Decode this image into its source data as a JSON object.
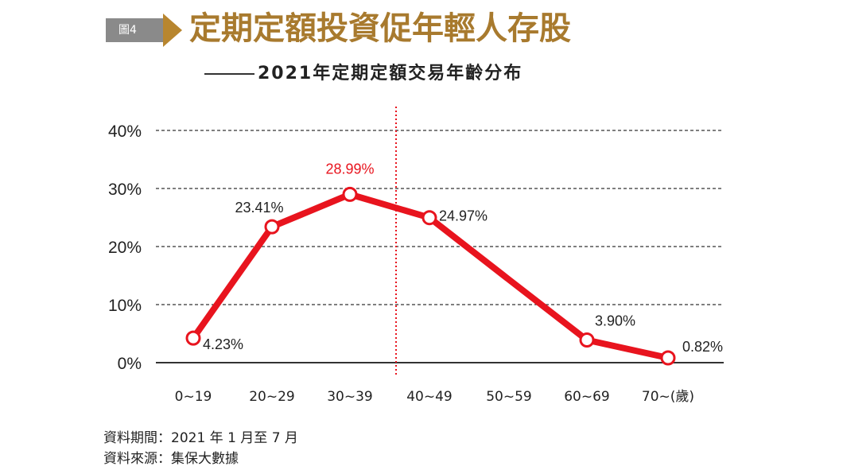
{
  "header": {
    "figure_label": "圖4",
    "title": "定期定額投資促年輕人存股",
    "subtitle": "2021年定期定額交易年齡分布",
    "accent_color": "#a87a2e",
    "badge_color": "#8a8a8a"
  },
  "chart_data": {
    "type": "line",
    "title": "2021年定期定額交易年齡分布",
    "categories": [
      "0~19",
      "20~29",
      "30~39",
      "40~49",
      "50~59",
      "60~69",
      "70~(歲)"
    ],
    "series": [
      {
        "values": [
          4.23,
          23.41,
          28.99,
          24.97,
          null,
          3.9,
          0.82
        ],
        "color": "#e8141e"
      }
    ],
    "plotted_values": [
      4.23,
      23.41,
      28.99,
      24.97,
      14.3,
      3.9,
      0.82
    ],
    "markers_at": [
      0,
      1,
      2,
      3,
      5,
      6
    ],
    "data_labels": [
      "4.23%",
      "23.41%",
      "28.99%",
      "24.97%",
      "",
      "3.90%",
      "0.82%"
    ],
    "highlight_label_index": 2,
    "highlight_color": "#e8141e",
    "y_ticks": [
      "0%",
      "10%",
      "20%",
      "30%",
      "40%"
    ],
    "y_tick_values": [
      0,
      10,
      20,
      30,
      40
    ],
    "ylim": [
      0,
      40
    ],
    "xlabel": "",
    "ylabel": "",
    "grid": "dashed horizontal",
    "divider": "red dotted vertical line between 30~39 and 40~49",
    "legend": "none"
  },
  "source": {
    "period_label": "資料期間：",
    "period_value": "2021 年 1 月至 7 月",
    "source_label": "資料來源：",
    "source_value": "集保大數據"
  }
}
